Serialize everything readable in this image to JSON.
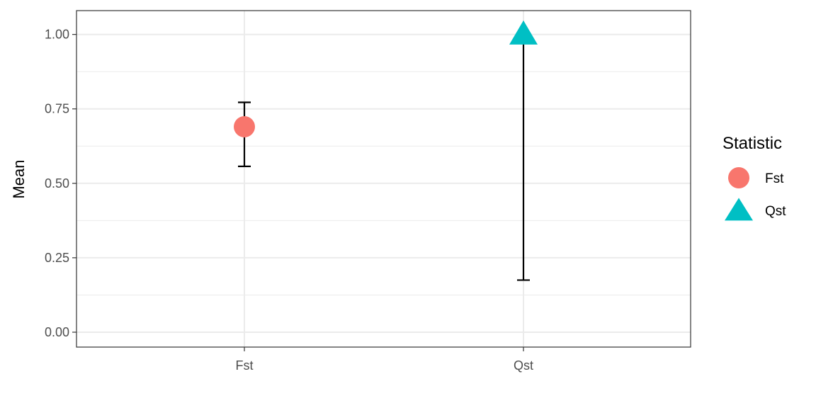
{
  "chart_data": {
    "type": "scatter",
    "title": "",
    "xlabel": "",
    "ylabel": "Mean",
    "categories": [
      "Fst",
      "Qst"
    ],
    "ylim": [
      -0.05,
      1.08
    ],
    "yticks": [
      0.0,
      0.25,
      0.5,
      0.75,
      1.0
    ],
    "ytick_labels": [
      "0.00",
      "0.25",
      "0.50",
      "0.75",
      "1.00"
    ],
    "grid": true,
    "legend": {
      "title": "Statistic",
      "placement": "right",
      "entries": [
        {
          "label": "Fst",
          "shape": "circle",
          "color": "#F8766D"
        },
        {
          "label": "Qst",
          "shape": "triangle",
          "color": "#00BFC4"
        }
      ]
    },
    "series": [
      {
        "category": "Fst",
        "mean": 0.69,
        "lower": 0.557,
        "upper": 0.772,
        "shape": "circle",
        "color": "#F8766D"
      },
      {
        "category": "Qst",
        "mean": 1.0,
        "lower": 0.175,
        "upper": 1.0,
        "shape": "triangle",
        "color": "#00BFC4"
      }
    ]
  }
}
